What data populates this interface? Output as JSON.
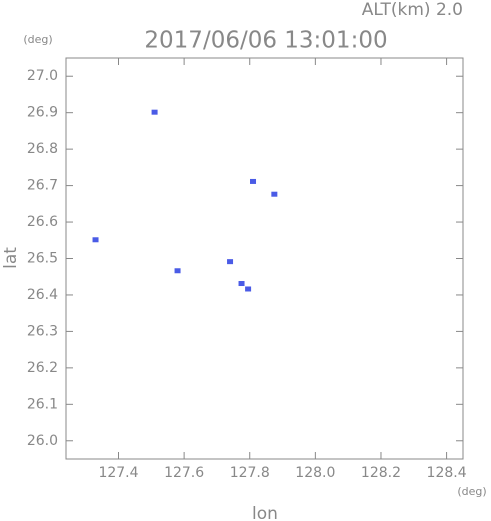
{
  "chart_data": {
    "type": "scatter",
    "title": "2017/06/06 13:01:00",
    "subtitle": "ALT(km) 2.0",
    "x_label": "lon",
    "y_label": "lat",
    "x_unit": "(deg)",
    "y_unit": "(deg)",
    "series": [
      {
        "color": "#4a5be6",
        "x": [
          127.51,
          127.81,
          127.875,
          127.33,
          127.58,
          127.74,
          127.775,
          127.795
        ],
        "values": [
          26.9,
          26.71,
          26.675,
          26.55,
          26.465,
          26.49,
          26.43,
          26.415
        ]
      }
    ],
    "xlim": [
      127.24,
      128.45
    ],
    "ylim": [
      25.95,
      27.05
    ],
    "xticks": [
      127.4,
      127.6,
      127.8,
      {
        "value": 128,
        "label": "128.0"
      },
      128.2,
      128.4
    ],
    "yticks": [
      {
        "value": 26,
        "label": "26.0"
      },
      26.1,
      26.2,
      26.3,
      26.4,
      26.5,
      26.6,
      26.7,
      26.8,
      26.9,
      {
        "value": 27,
        "label": "27.0"
      }
    ],
    "grid": false
  }
}
